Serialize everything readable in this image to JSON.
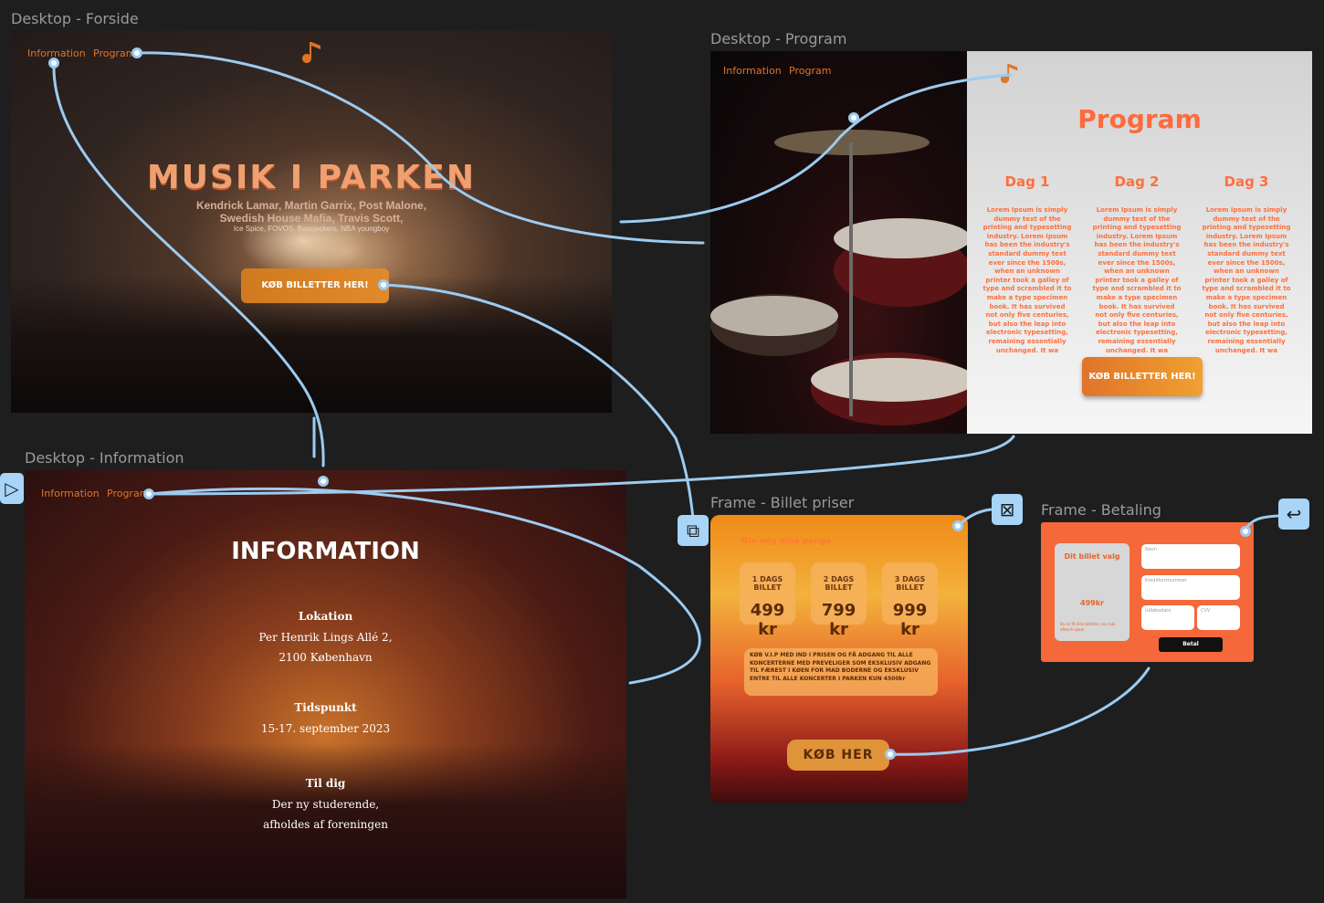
{
  "canvas": {
    "background": "#1e1e1e",
    "link_color": "#9ccbf0",
    "accent": "#e0742a"
  },
  "frames": {
    "forside": {
      "label": "Desktop - Forside",
      "nav": {
        "information": "Information",
        "program": "Program"
      },
      "title": "MUSIK I PARKEN",
      "artists_line1": "Kendrick Lamar, Martin Garrix, Post Malone,",
      "artists_line2": "Swedish House Mafia, Travis Scott,",
      "artists_line3": "Ice Spice, FOVOS, Bassjackers, NBA youngboy",
      "cta": "KØB BILLETTER HER!",
      "logo_icon": "music-note-icon"
    },
    "program": {
      "label": "Desktop - Program",
      "nav": {
        "information": "Information",
        "program": "Program"
      },
      "title": "Program",
      "days": [
        {
          "title": "Dag 1",
          "text": "Lorem Ipsum is simply dummy text of the printing and typesetting industry. Lorem Ipsum has been the industry's standard dummy text ever since the 1500s, when an unknown printer took a galley of type and scrambled it to make a type specimen book. It has survived not only five centuries, but also the leap into electronic typesetting, remaining essentially unchanged. It wa"
        },
        {
          "title": "Dag 2",
          "text": "Lorem Ipsum is simply dummy text of the printing and typesetting industry. Lorem Ipsum has been the industry's standard dummy text ever since the 1500s, when an unknown printer took a galley of type and scrambled it to make a type specimen book. It has survived not only five centuries, but also the leap into electronic typesetting, remaining essentially unchanged. It wa"
        },
        {
          "title": "Dag 3",
          "text": "Lorem Ipsum is simply dummy text of the printing and typesetting industry. Lorem Ipsum has been the industry's standard dummy text ever since the 1500s, when an unknown printer took a galley of type and scrambled it to make a type specimen book. It has survived not only five centuries, but also the leap into electronic typesetting, remaining essentially unchanged. It wa"
        }
      ],
      "cta": "KØB BILLETTER HER!"
    },
    "information": {
      "label": "Desktop - Information",
      "nav": {
        "information": "Information",
        "program": "Program"
      },
      "title": "INFORMATION",
      "sections": [
        {
          "heading": "Lokation",
          "line1": "Per Henrik Lings Allé 2,",
          "line2": "2100 København"
        },
        {
          "heading": "Tidspunkt",
          "line1": "15-17. september 2023",
          "line2": ""
        },
        {
          "heading": "Til dig",
          "line1": "Der ny studerende,",
          "line2": "afholdes af foreningen"
        }
      ]
    },
    "billet": {
      "label": "Frame - Billet priser",
      "header": "Giv mig dine penge",
      "tickets": [
        {
          "title": "1 DAGS BILLET",
          "price": "499 kr"
        },
        {
          "title": "2 DAGS BILLET",
          "price": "799 kr"
        },
        {
          "title": "3 DAGS BILLET",
          "price": "999 kr"
        }
      ],
      "vip_text": "KØB V.I.P MED IND I PRISEN OG FÅ ADGANG TIL ALLE KONCERTERNE MED PREVELIGER SOM EKSKLUSIV ADGANG TIL FÆREST I KØEN FOR MAD BODERNE OG EKSKLUSIV ENTRE TIL ALLE KONCERTER I PARKEN KUN 4500kr",
      "cta": "KØB HER"
    },
    "betaling": {
      "label": "Frame - Betaling",
      "choice_title": "Dit billet valg",
      "choice_price": "499kr",
      "choice_note": "Du vil få dine billetter via mail, efterch spam",
      "fields": {
        "name": "Navn",
        "card": "Kreditkortnummer",
        "expiry": "Udløbsdato",
        "cvv": "CVV"
      },
      "pay_button": "Betal"
    }
  },
  "toolbar_icons": [
    "present-icon",
    "device-frame-icon",
    "close-overlay-icon",
    "back-arrow-icon"
  ]
}
